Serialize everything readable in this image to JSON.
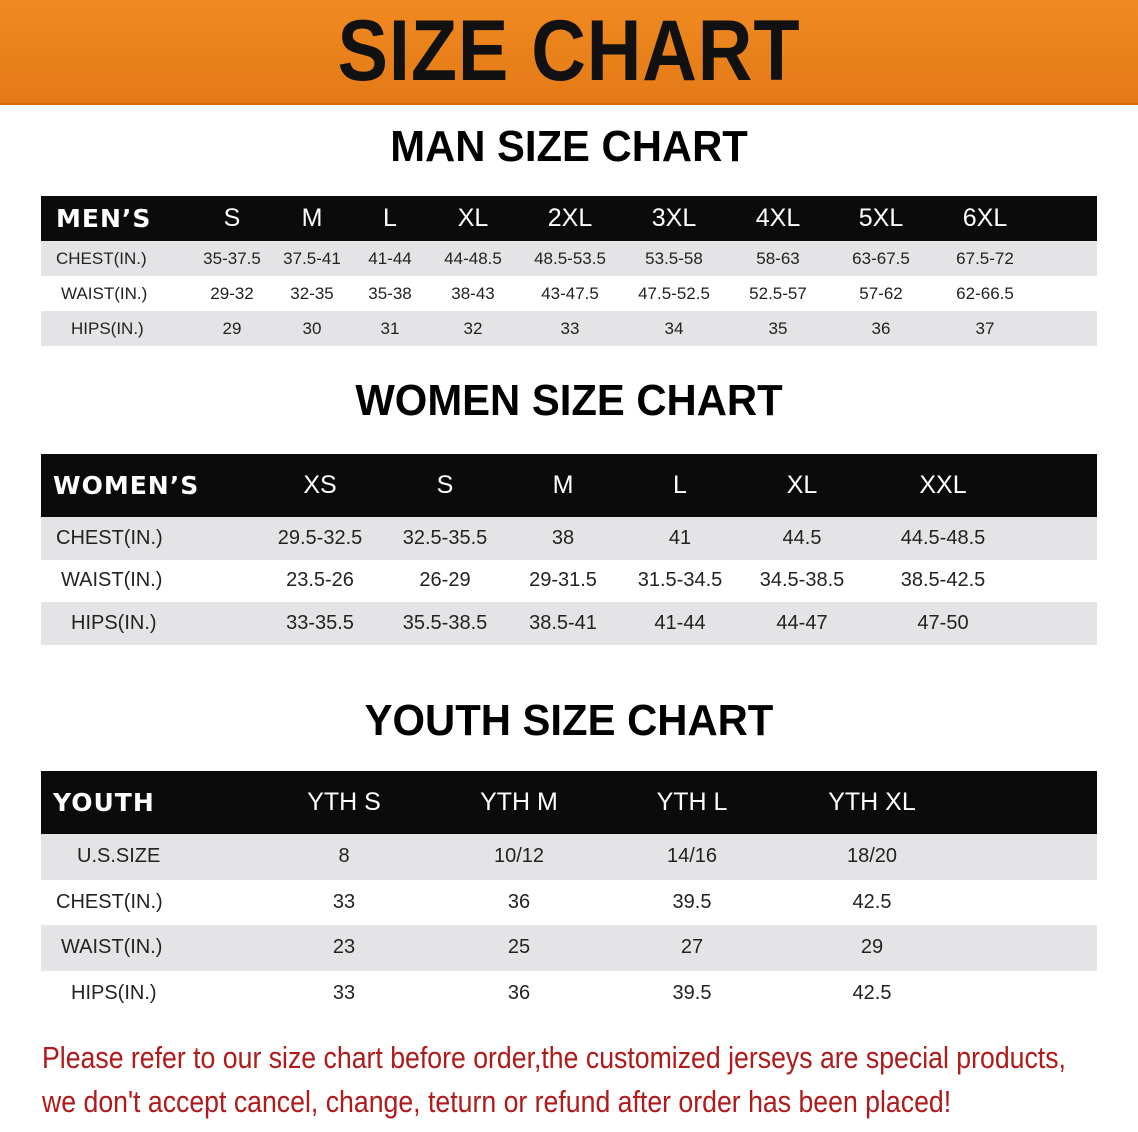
{
  "banner_title": "SIZE CHART",
  "men": {
    "title": "MAN SIZE CHART",
    "header": [
      "MEN’S",
      "S",
      "M",
      "L",
      "XL",
      "2XL",
      "3XL",
      "4XL",
      "5XL",
      "6XL"
    ],
    "rows": [
      [
        "CHEST(IN.)",
        "35-37.5",
        "37.5-41",
        "41-44",
        "44-48.5",
        "48.5-53.5",
        "53.5-58",
        "58-63",
        "63-67.5",
        "67.5-72"
      ],
      [
        "WAIST(IN.)",
        "29-32",
        "32-35",
        "35-38",
        "38-43",
        "43-47.5",
        "47.5-52.5",
        "52.5-57",
        "57-62",
        "62-66.5"
      ],
      [
        "HIPS(IN.)",
        "29",
        "30",
        "31",
        "32",
        "33",
        "34",
        "35",
        "36",
        "37"
      ]
    ]
  },
  "women": {
    "title": "WOMEN SIZE CHART",
    "header": [
      "WOMEN’S",
      "XS",
      "S",
      "M",
      "L",
      "XL",
      "XXL"
    ],
    "rows": [
      [
        "CHEST(IN.)",
        "29.5-32.5",
        "32.5-35.5",
        "38",
        "41",
        "44.5",
        "44.5-48.5"
      ],
      [
        "WAIST(IN.)",
        "23.5-26",
        "26-29",
        "29-31.5",
        "31.5-34.5",
        "34.5-38.5",
        "38.5-42.5"
      ],
      [
        "HIPS(IN.)",
        "33-35.5",
        "35.5-38.5",
        "38.5-41",
        "41-44",
        "44-47",
        "47-50"
      ]
    ]
  },
  "youth": {
    "title": "YOUTH SIZE CHART",
    "header": [
      "YOUTH",
      "YTH S",
      "YTH M",
      "YTH L",
      "YTH XL"
    ],
    "rows": [
      [
        "U.S.SIZE",
        "8",
        "10/12",
        "14/16",
        "18/20"
      ],
      [
        "CHEST(IN.)",
        "33",
        "36",
        "39.5",
        "42.5"
      ],
      [
        "WAIST(IN.)",
        "23",
        "25",
        "27",
        "29"
      ],
      [
        "HIPS(IN.)",
        "33",
        "36",
        "39.5",
        "42.5"
      ]
    ]
  },
  "note": [
    "Please refer to our size chart before order,the customized jerseys are special products,",
    "we don't accept cancel, change, teturn or refund after order has been placed!"
  ],
  "colors": {
    "banner": "#e8821c",
    "header_row": "#0b0b0b",
    "stripe": "#e4e4e6",
    "note": "#b01a1a"
  }
}
